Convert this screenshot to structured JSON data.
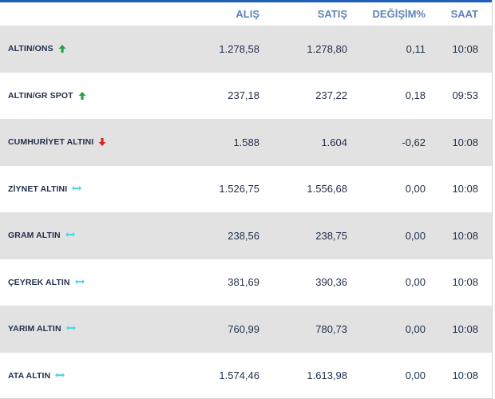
{
  "columns": {
    "name": "",
    "alis": "ALIŞ",
    "satis": "SATIŞ",
    "degisim": "DEĞİŞİM%",
    "saat": "SAAT"
  },
  "colors": {
    "up": "#27a243",
    "down": "#d7262b",
    "flat": "#4fd3e6",
    "header_text": "#5f84b8",
    "top_line": "#1f5fb5"
  },
  "rows": [
    {
      "name": "ALTIN/ONS",
      "trend": "up",
      "trend_icon": "arrow-up-icon",
      "alis": "1.278,58",
      "satis": "1.278,80",
      "degisim": "0,11",
      "saat": "10:08"
    },
    {
      "name": "ALTIN/GR SPOT",
      "trend": "up",
      "trend_icon": "arrow-up-icon",
      "alis": "237,18",
      "satis": "237,22",
      "degisim": "0,18",
      "saat": "09:53"
    },
    {
      "name": "CUMHURİYET ALTINI",
      "trend": "down",
      "trend_icon": "arrow-down-icon",
      "alis": "1.588",
      "satis": "1.604",
      "degisim": "-0,62",
      "saat": "10:08"
    },
    {
      "name": "ZİYNET ALTINI",
      "trend": "flat",
      "trend_icon": "arrow-left-right-icon",
      "alis": "1.526,75",
      "satis": "1.556,68",
      "degisim": "0,00",
      "saat": "10:08"
    },
    {
      "name": "GRAM ALTIN",
      "trend": "flat",
      "trend_icon": "arrow-left-right-icon",
      "alis": "238,56",
      "satis": "238,75",
      "degisim": "0,00",
      "saat": "10:08"
    },
    {
      "name": "ÇEYREK ALTIN",
      "trend": "flat",
      "trend_icon": "arrow-left-right-icon",
      "alis": "381,69",
      "satis": "390,36",
      "degisim": "0,00",
      "saat": "10:08"
    },
    {
      "name": "YARIM ALTIN",
      "trend": "flat",
      "trend_icon": "arrow-left-right-icon",
      "alis": "760,99",
      "satis": "780,73",
      "degisim": "0,00",
      "saat": "10:08"
    },
    {
      "name": "ATA ALTIN",
      "trend": "flat",
      "trend_icon": "arrow-left-right-icon",
      "alis": "1.574,46",
      "satis": "1.613,98",
      "degisim": "0,00",
      "saat": "10:08"
    }
  ]
}
